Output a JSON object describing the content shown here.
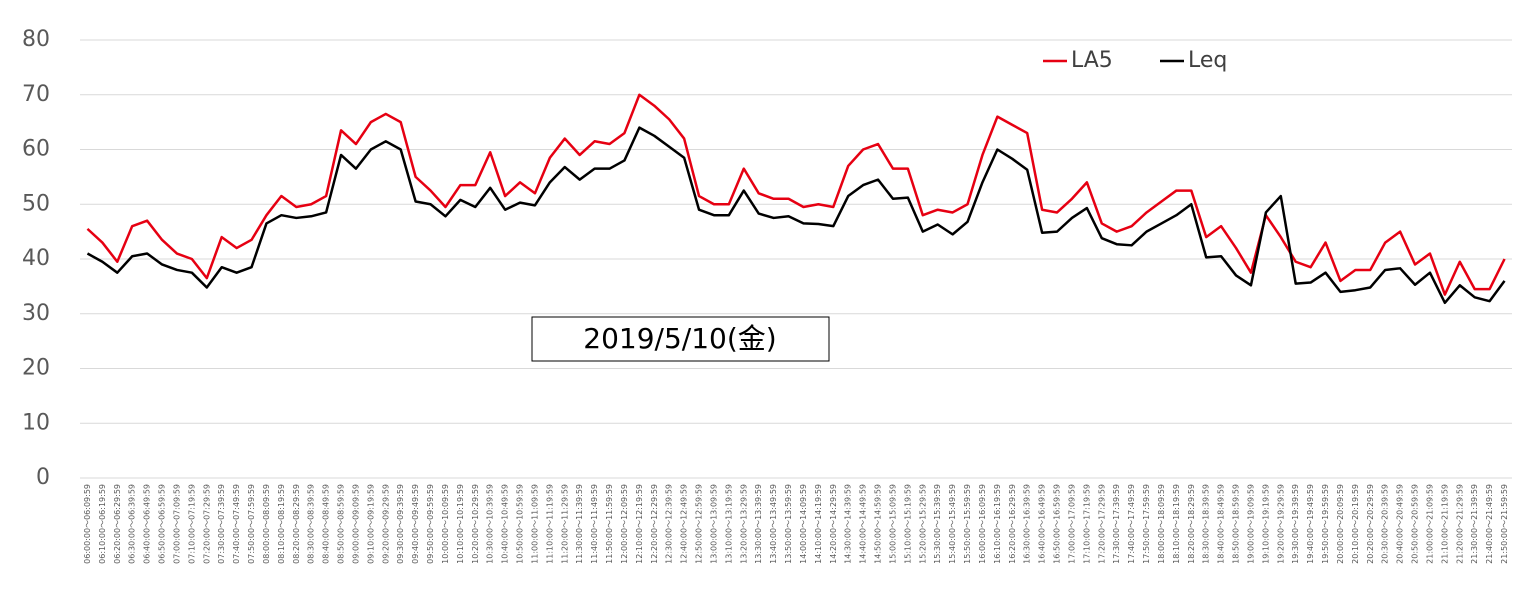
{
  "chart_data": {
    "type": "line",
    "annotation": "2019/5/10(金)",
    "categories": [
      "06:00:00～06:09:59",
      "06:10:00～06:19:59",
      "06:20:00～06:29:59",
      "06:30:00～06:39:59",
      "06:40:00～06:49:59",
      "06:50:00～06:59:59",
      "07:00:00～07:09:59",
      "07:10:00～07:19:59",
      "07:20:00～07:29:59",
      "07:30:00～07:39:59",
      "07:40:00～07:49:59",
      "07:50:00～07:59:59",
      "08:00:00～08:09:59",
      "08:10:00～08:19:59",
      "08:20:00～08:29:59",
      "08:30:00～08:39:59",
      "08:40:00～08:49:59",
      "08:50:00～08:59:59",
      "09:00:00～09:09:59",
      "09:10:00～09:19:59",
      "09:20:00～09:29:59",
      "09:30:00～09:39:59",
      "09:40:00～09:49:59",
      "09:50:00～09:59:59",
      "10:00:00～10:09:59",
      "10:10:00～10:19:59",
      "10:20:00～10:29:59",
      "10:30:00～10:39:59",
      "10:40:00～10:49:59",
      "10:50:00～10:59:59",
      "11:00:00～11:09:59",
      "11:10:00～11:19:59",
      "11:20:00～11:29:59",
      "11:30:00～11:39:59",
      "11:40:00～11:49:59",
      "11:50:00～11:59:59",
      "12:00:00～12:09:59",
      "12:10:00～12:19:59",
      "12:20:00～12:29:59",
      "12:30:00～12:39:59",
      "12:40:00～12:49:59",
      "12:50:00～12:59:59",
      "13:00:00～13:09:59",
      "13:10:00～13:19:59",
      "13:20:00～13:29:59",
      "13:30:00～13:39:59",
      "13:40:00～13:49:59",
      "13:50:00～13:59:59",
      "14:00:00～14:09:59",
      "14:10:00～14:19:59",
      "14:20:00～14:29:59",
      "14:30:00～14:39:59",
      "14:40:00～14:49:59",
      "14:50:00～14:59:59",
      "15:00:00～15:09:59",
      "15:10:00～15:19:59",
      "15:20:00～15:29:59",
      "15:30:00～15:39:59",
      "15:40:00～15:49:59",
      "15:50:00～15:59:59",
      "16:00:00～16:09:59",
      "16:10:00～16:19:59",
      "16:20:00～16:29:59",
      "16:30:00～16:39:59",
      "16:40:00～16:49:59",
      "16:50:00～16:59:59",
      "17:00:00～17:09:59",
      "17:10:00～17:19:59",
      "17:20:00～17:29:59",
      "17:30:00～17:39:59",
      "17:40:00～17:49:59",
      "17:50:00～17:59:59",
      "18:00:00～18:09:59",
      "18:10:00～18:19:59",
      "18:20:00～18:29:59",
      "18:30:00～18:39:59",
      "18:40:00～18:49:59",
      "18:50:00～18:59:59",
      "19:00:00～19:09:59",
      "19:10:00～19:19:59",
      "19:20:00～19:29:59",
      "19:30:00～19:39:59",
      "19:40:00～19:49:59",
      "19:50:00～19:59:59",
      "20:00:00～20:09:59",
      "20:10:00～20:19:59",
      "20:20:00～20:29:59",
      "20:30:00～20:39:59",
      "20:40:00～20:49:59",
      "20:50:00～20:59:59",
      "21:00:00～21:09:59",
      "21:10:00～21:19:59",
      "21:20:00～21:29:59",
      "21:30:00～21:39:59",
      "21:40:00～21:49:59",
      "21:50:00～21:59:59"
    ],
    "series": [
      {
        "name": "LA5",
        "color": "#e60012",
        "values": [
          45.5,
          43,
          39.5,
          46,
          47,
          43.5,
          41,
          40,
          36.5,
          44,
          42,
          43.5,
          48,
          51.5,
          49.5,
          50,
          51.5,
          63.5,
          61,
          65,
          66.5,
          65,
          55,
          52.5,
          49.5,
          53.5,
          53.5,
          59.5,
          51.5,
          54,
          52,
          58.5,
          62,
          59,
          61.5,
          61,
          63,
          70,
          68,
          65.5,
          62,
          51.5,
          50,
          50,
          56.5,
          52,
          51,
          51,
          49.5,
          50,
          49.5,
          57,
          60,
          61,
          56.5,
          56.5,
          48,
          49,
          48.5,
          50,
          59,
          66,
          64.5,
          63,
          49,
          48.5,
          51,
          54,
          46.5,
          45,
          46,
          48.5,
          50.5,
          52.5,
          52.5,
          44,
          46,
          42,
          37.5,
          48,
          44,
          39.5,
          38.5,
          43,
          36,
          38,
          38,
          43,
          45,
          39,
          41,
          33.5,
          39.5,
          34.5,
          34.5,
          40
        ]
      },
      {
        "name": "Leq",
        "color": "#000000",
        "values": [
          41,
          39.5,
          37.5,
          40.5,
          41,
          39,
          38,
          37.5,
          34.8,
          38.5,
          37.5,
          38.5,
          46.5,
          48,
          47.5,
          47.8,
          48.5,
          59,
          56.5,
          60,
          61.5,
          60,
          50.5,
          50,
          47.8,
          50.8,
          49.5,
          53,
          49,
          50.3,
          49.8,
          54,
          56.8,
          54.5,
          56.5,
          56.5,
          58,
          64,
          62.5,
          60.5,
          58.5,
          49,
          48,
          48,
          52.5,
          48.3,
          47.5,
          47.8,
          46.5,
          46.4,
          46,
          51.5,
          53.5,
          54.5,
          51,
          51.2,
          45,
          46.3,
          44.5,
          46.8,
          54,
          60,
          58.3,
          56.3,
          44.8,
          45,
          47.5,
          49.3,
          43.8,
          42.7,
          42.5,
          45,
          46.5,
          48,
          50,
          40.3,
          40.5,
          37,
          35.2,
          48.5,
          51.5,
          35.5,
          35.7,
          37.5,
          34,
          34.3,
          34.8,
          38,
          38.3,
          35.3,
          37.5,
          32,
          35.2,
          33,
          32.3,
          36
        ]
      }
    ],
    "ylim": [
      0,
      80
    ],
    "yticks": [
      0,
      10,
      20,
      30,
      40,
      50,
      60,
      70,
      80
    ],
    "grid": true,
    "legend": "top-right"
  }
}
